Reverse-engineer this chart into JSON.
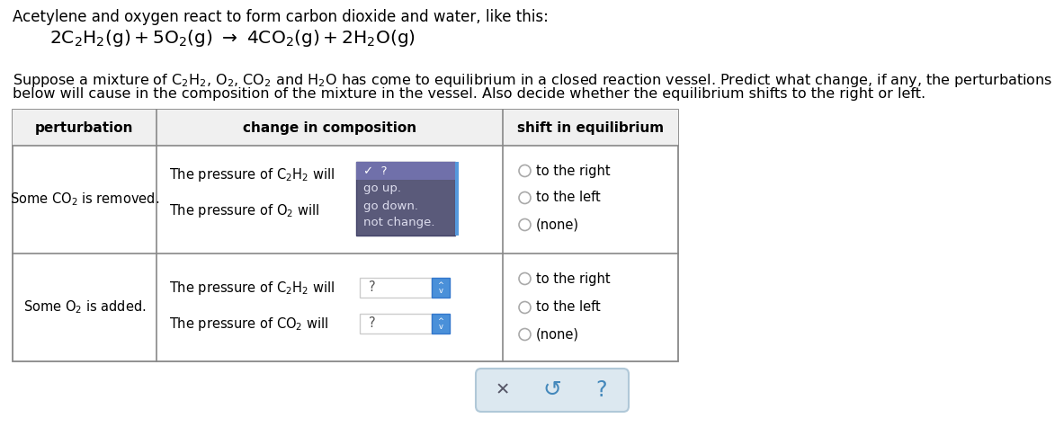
{
  "bg_color": "#ffffff",
  "title_text": "Acetylene and oxygen react to form carbon dioxide and water, like this:",
  "col_headers": [
    "perturbation",
    "change in composition",
    "shift in equilibrium"
  ],
  "row1_perturbation": "Some CO₂ is removed.",
  "row2_perturbation": "Some O₂ is added.",
  "dropdown_bg": "#5a5a7a",
  "dropdown_selected_bg": "#7070aa",
  "dropdown_items": [
    "✓  ?",
    "go up.",
    "go down.",
    "not change."
  ],
  "input_box_color": "#4a90d9",
  "table_border_color": "#888888",
  "bottom_bar_color": "#dce8f0",
  "bottom_bar_border": "#b0c8d8",
  "radio_color": "#999999"
}
